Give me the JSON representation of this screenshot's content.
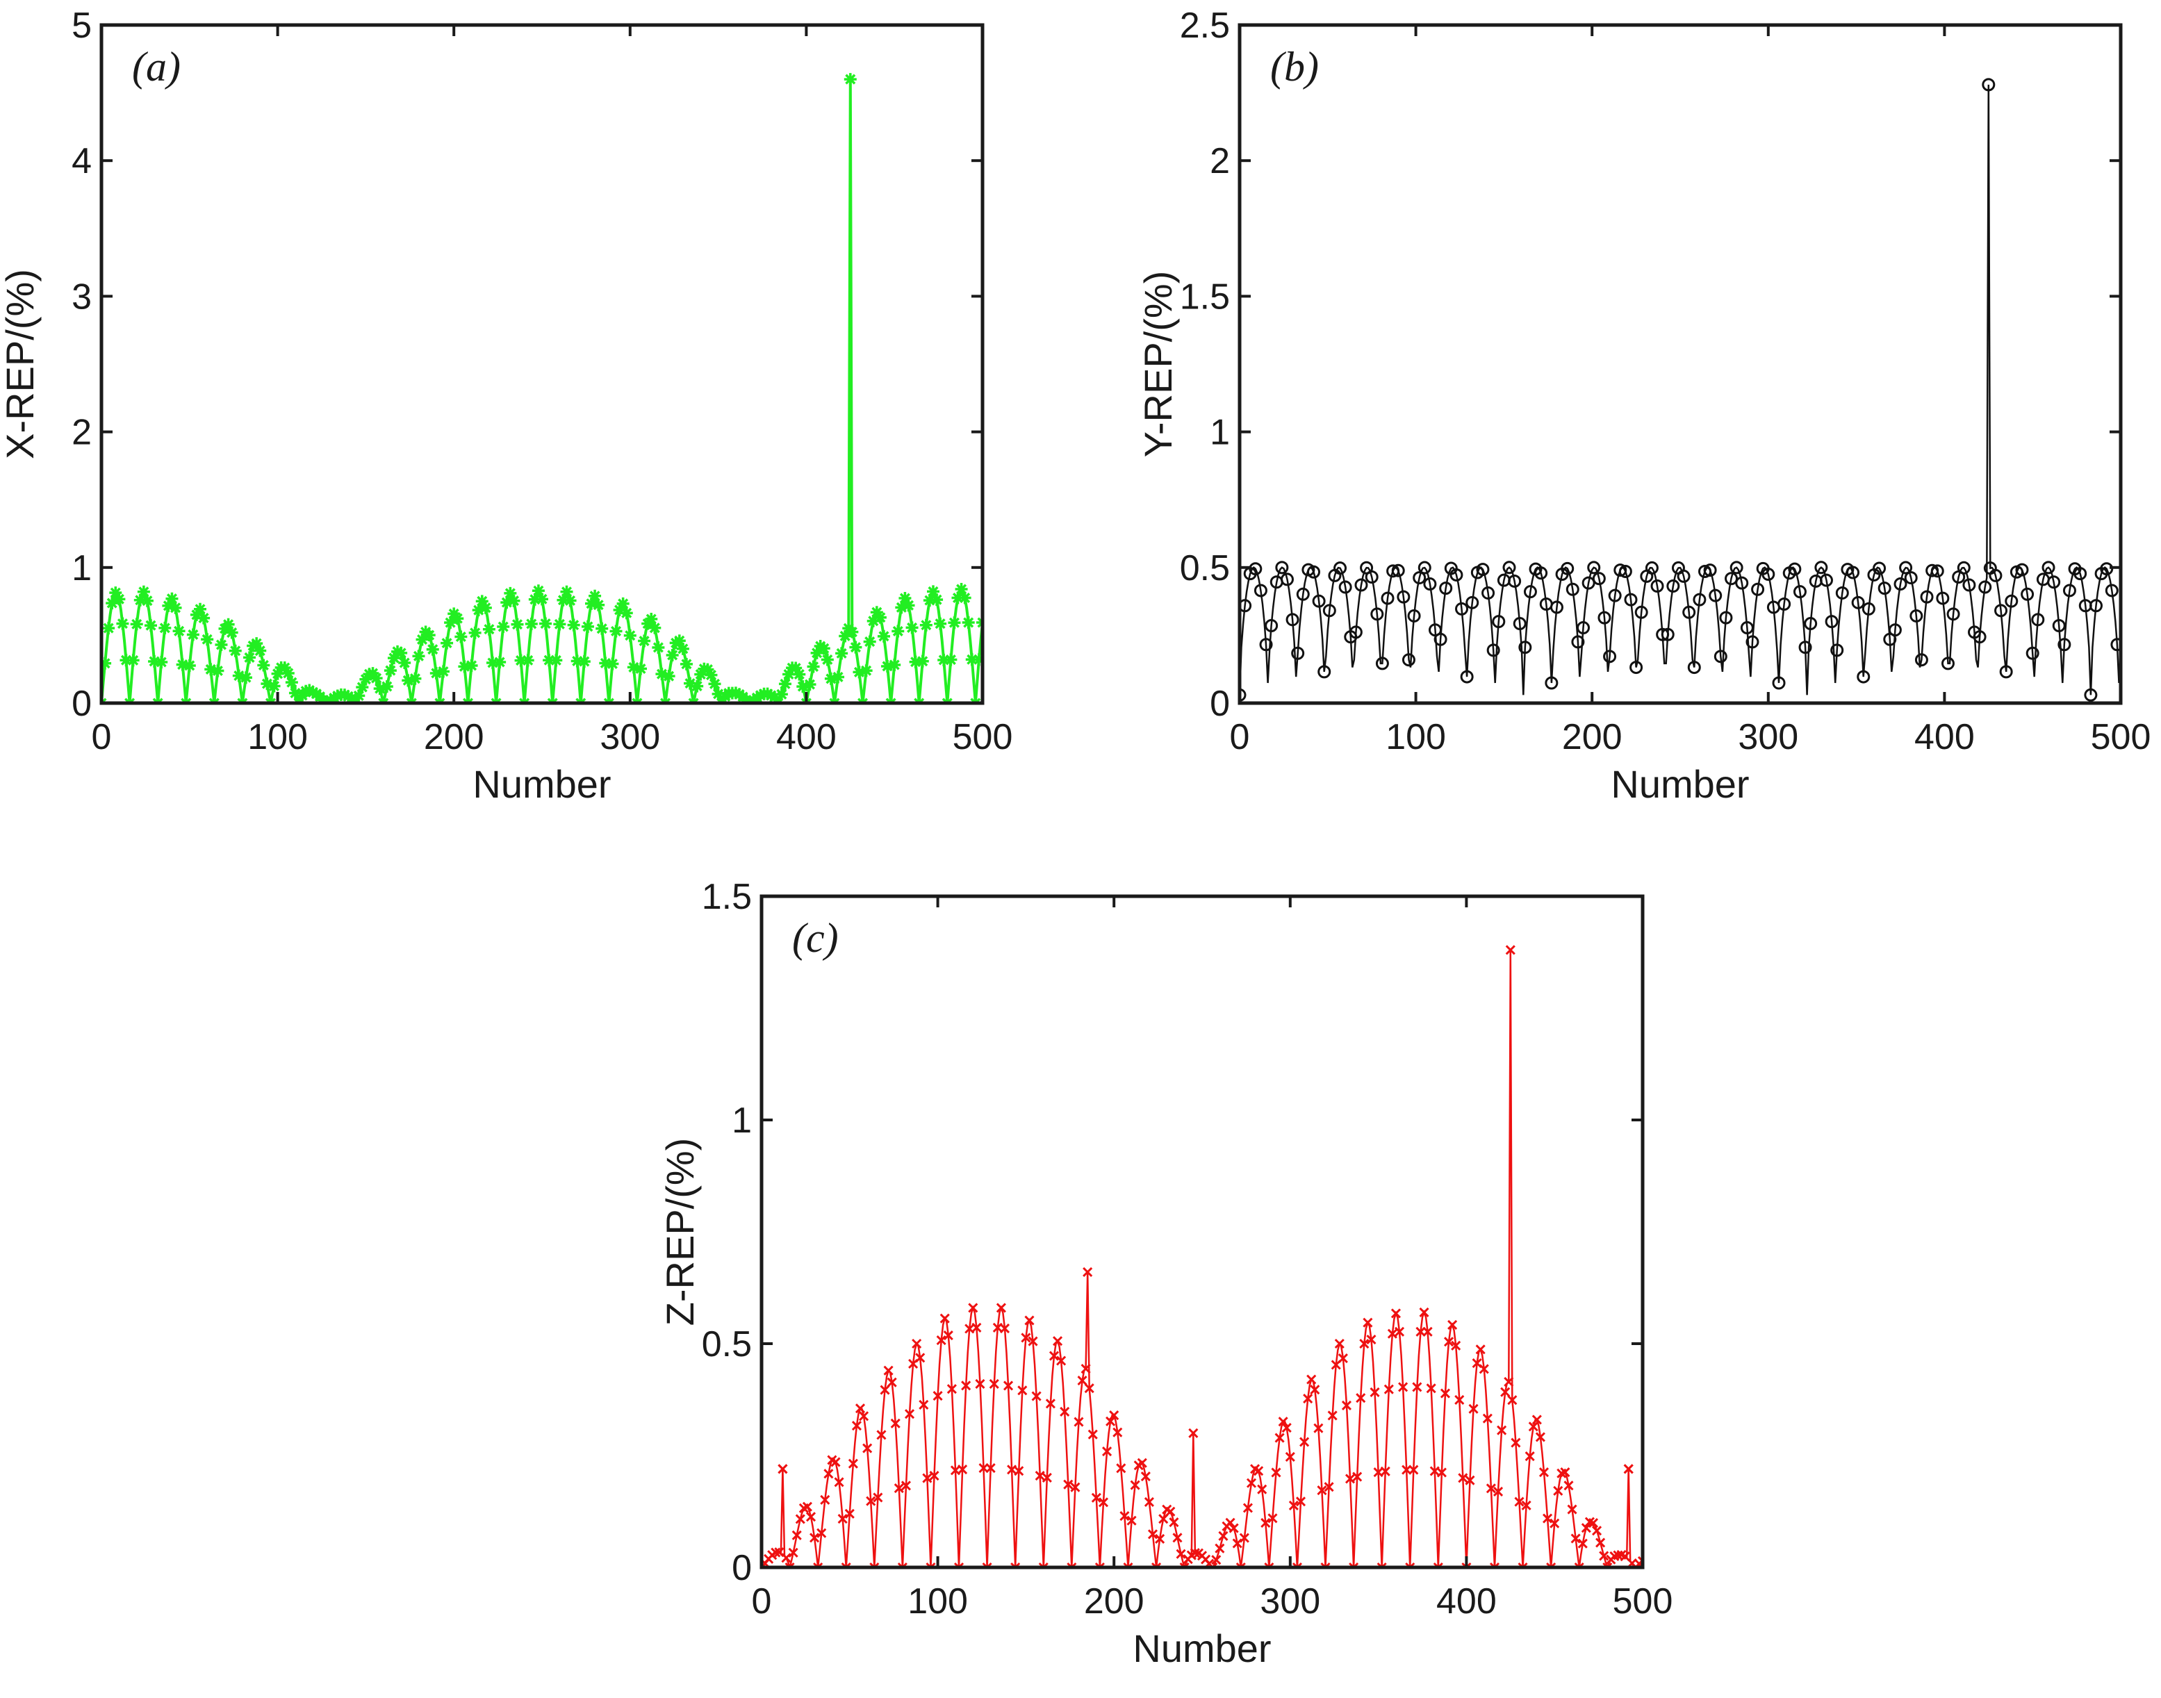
{
  "chart_data": [
    {
      "id": "a",
      "type": "line",
      "panel_label": "(a)",
      "xlabel": "Number",
      "ylabel": "X-REP/(%)",
      "xlim": [
        0,
        500
      ],
      "ylim": [
        0,
        5
      ],
      "xticks": [
        "0",
        "100",
        "200",
        "300",
        "400",
        "500"
      ],
      "yticks": [
        "0",
        "1",
        "2",
        "3",
        "4",
        "5"
      ],
      "color": "#22ee22",
      "marker": "asterisk",
      "period": 16,
      "envelope": [
        [
          0,
          0.75
        ],
        [
          10,
          0.83
        ],
        [
          25,
          0.82
        ],
        [
          40,
          0.77
        ],
        [
          55,
          0.7
        ],
        [
          72,
          0.58
        ],
        [
          88,
          0.44
        ],
        [
          105,
          0.25
        ],
        [
          120,
          0.08
        ],
        [
          130,
          0.05
        ],
        [
          140,
          0.07
        ],
        [
          155,
          0.25
        ],
        [
          172,
          0.42
        ],
        [
          188,
          0.56
        ],
        [
          205,
          0.7
        ],
        [
          220,
          0.77
        ],
        [
          235,
          0.82
        ],
        [
          250,
          0.83
        ],
        [
          265,
          0.82
        ],
        [
          280,
          0.79
        ],
        [
          295,
          0.74
        ],
        [
          312,
          0.62
        ],
        [
          328,
          0.46
        ],
        [
          343,
          0.26
        ],
        [
          358,
          0.08
        ],
        [
          370,
          0.05
        ],
        [
          380,
          0.08
        ],
        [
          392,
          0.26
        ],
        [
          408,
          0.42
        ],
        [
          425,
          0.56
        ],
        [
          440,
          0.67
        ],
        [
          455,
          0.77
        ],
        [
          470,
          0.82
        ],
        [
          485,
          0.84
        ],
        [
          500,
          0.84
        ]
      ],
      "spikes": [
        {
          "x": 425,
          "y": 4.6
        }
      ]
    },
    {
      "id": "b",
      "type": "line",
      "panel_label": "(b)",
      "xlabel": "Number",
      "ylabel": "Y-REP/(%)",
      "xlim": [
        0,
        500
      ],
      "ylim": [
        0,
        2.5
      ],
      "xticks": [
        "0",
        "100",
        "200",
        "300",
        "400",
        "500"
      ],
      "yticks": [
        "0",
        "0.5",
        "1",
        "1.5",
        "2",
        "2.5"
      ],
      "color": "#111111",
      "marker": "circle",
      "period": 16.1,
      "envelope": [
        [
          0,
          0.5
        ],
        [
          500,
          0.5
        ]
      ],
      "spikes": [
        {
          "x": 425,
          "y": 2.28
        }
      ]
    },
    {
      "id": "c",
      "type": "line",
      "panel_label": "(c)",
      "xlabel": "Number",
      "ylabel": "Z-REP/(%)",
      "xlim": [
        0,
        500
      ],
      "ylim": [
        0,
        1.5
      ],
      "xticks": [
        "0",
        "100",
        "200",
        "300",
        "400",
        "500"
      ],
      "yticks": [
        "0",
        "0.5",
        "1",
        "1.5"
      ],
      "color": "#ee1111",
      "marker": "x",
      "period": 16,
      "envelope": [
        [
          0,
          0.02
        ],
        [
          12,
          0.04
        ],
        [
          25,
          0.14
        ],
        [
          40,
          0.24
        ],
        [
          55,
          0.35
        ],
        [
          72,
          0.44
        ],
        [
          88,
          0.5
        ],
        [
          105,
          0.56
        ],
        [
          120,
          0.58
        ],
        [
          137,
          0.58
        ],
        [
          153,
          0.55
        ],
        [
          170,
          0.5
        ],
        [
          185,
          0.44
        ],
        [
          200,
          0.34
        ],
        [
          215,
          0.24
        ],
        [
          230,
          0.14
        ],
        [
          243,
          0.04
        ],
        [
          255,
          0.02
        ],
        [
          265,
          0.1
        ],
        [
          280,
          0.22
        ],
        [
          295,
          0.32
        ],
        [
          312,
          0.42
        ],
        [
          328,
          0.5
        ],
        [
          345,
          0.55
        ],
        [
          362,
          0.57
        ],
        [
          378,
          0.57
        ],
        [
          393,
          0.54
        ],
        [
          410,
          0.48
        ],
        [
          425,
          0.41
        ],
        [
          440,
          0.33
        ],
        [
          455,
          0.22
        ],
        [
          470,
          0.11
        ],
        [
          485,
          0.03
        ],
        [
          500,
          0.02
        ]
      ],
      "spikes": [
        {
          "x": 12,
          "y": 0.22
        },
        {
          "x": 185,
          "y": 0.66
        },
        {
          "x": 245,
          "y": 0.3
        },
        {
          "x": 425,
          "y": 1.38
        },
        {
          "x": 492,
          "y": 0.22
        }
      ]
    }
  ]
}
